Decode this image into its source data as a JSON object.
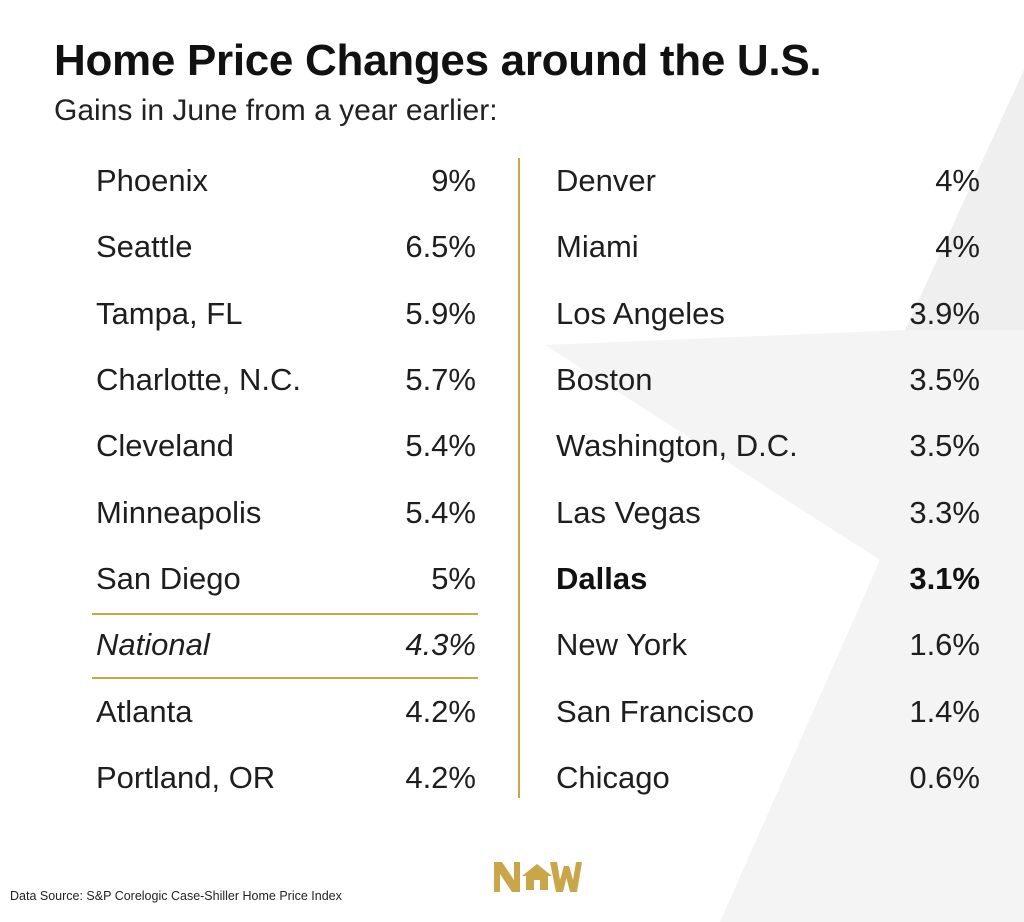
{
  "header": {
    "title": "Home Price Changes around the U.S.",
    "subtitle": "Gains in June from a year earlier:"
  },
  "chart_data": {
    "type": "table",
    "columns": [
      {
        "rows": [
          {
            "city": "Phoenix",
            "value": "9%",
            "style": "normal"
          },
          {
            "city": "Seattle",
            "value": "6.5%",
            "style": "normal"
          },
          {
            "city": "Tampa, FL",
            "value": "5.9%",
            "style": "normal"
          },
          {
            "city": "Charlotte, N.C.",
            "value": "5.7%",
            "style": "normal"
          },
          {
            "city": "Cleveland",
            "value": "5.4%",
            "style": "normal"
          },
          {
            "city": "Minneapolis",
            "value": "5.4%",
            "style": "normal"
          },
          {
            "city": "San Diego",
            "value": "5%",
            "style": "normal"
          },
          {
            "city": "National",
            "value": "4.3%",
            "style": "italic-boxed"
          },
          {
            "city": "Atlanta",
            "value": "4.2%",
            "style": "normal"
          },
          {
            "city": "Portland, OR",
            "value": "4.2%",
            "style": "normal"
          }
        ]
      },
      {
        "rows": [
          {
            "city": "Denver",
            "value": "4%",
            "style": "normal"
          },
          {
            "city": "Miami",
            "value": "4%",
            "style": "normal"
          },
          {
            "city": "Los Angeles",
            "value": "3.9%",
            "style": "normal"
          },
          {
            "city": "Boston",
            "value": "3.5%",
            "style": "normal"
          },
          {
            "city": "Washington, D.C.",
            "value": "3.5%",
            "style": "normal"
          },
          {
            "city": "Las Vegas",
            "value": "3.3%",
            "style": "normal"
          },
          {
            "city": "Dallas",
            "value": "3.1%",
            "style": "bold"
          },
          {
            "city": "New York",
            "value": "1.6%",
            "style": "normal"
          },
          {
            "city": "San Francisco",
            "value": "1.4%",
            "style": "normal"
          },
          {
            "city": "Chicago",
            "value": "0.6%",
            "style": "normal"
          }
        ]
      }
    ]
  },
  "footer": {
    "source": "Data Source: S&P Corelogic Case-Shiller Home Price Index",
    "logo_icon": "nw-house-logo-icon"
  },
  "colors": {
    "accent_gold": "#c9a64a",
    "star_gray": "#f3f3f3",
    "text": "#1e1e1e"
  }
}
